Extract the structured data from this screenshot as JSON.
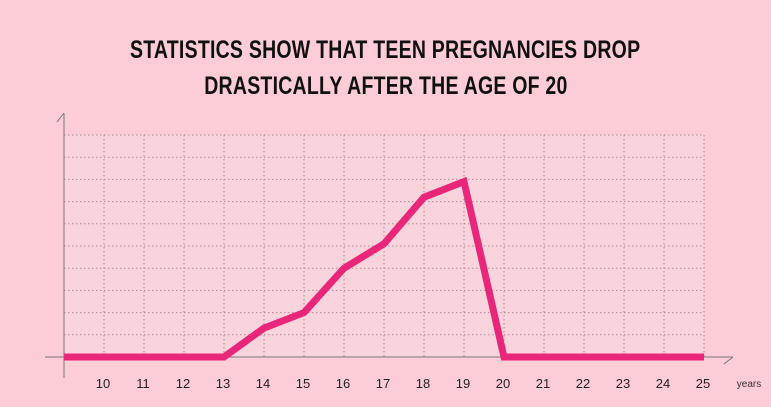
{
  "chart_data": {
    "type": "line",
    "title": [
      "STATISTICS SHOW THAT TEEN PREGNANCIES DROP",
      "DRASTICALLY AFTER THE AGE OF 20"
    ],
    "xlabel": "years",
    "ylabel": "",
    "categories": [
      10,
      11,
      12,
      13,
      14,
      15,
      16,
      17,
      18,
      19,
      20,
      21,
      22,
      23,
      24,
      25
    ],
    "values": [
      0,
      0,
      0,
      0,
      1.3,
      2.0,
      4.0,
      5.1,
      7.2,
      7.9,
      0,
      0,
      0,
      0,
      0,
      0
    ],
    "xlim": [
      9,
      25
    ],
    "ylim": [
      0,
      10
    ],
    "grid": true,
    "grid_style": "dotted",
    "y_tick_labels": false,
    "colors": {
      "background": "#fccdd7",
      "plot_area": "#fad4dd",
      "line": "#e8267a",
      "grid": "#b08890",
      "axis": "#777777"
    }
  }
}
